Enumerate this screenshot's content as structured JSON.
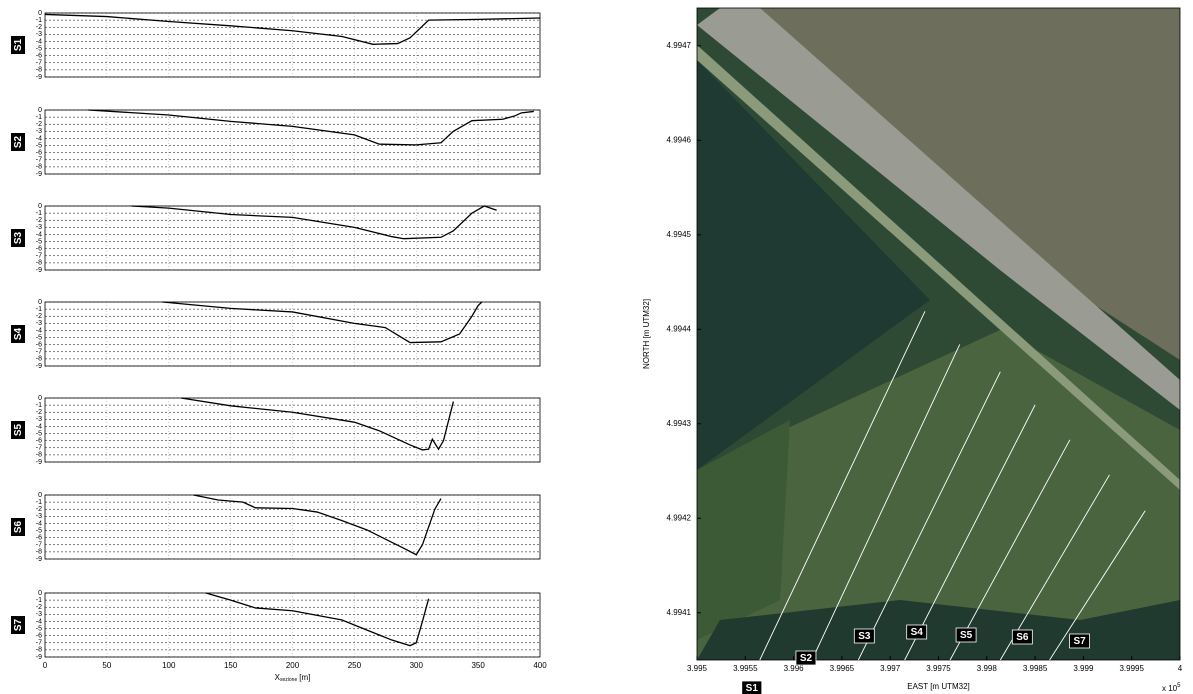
{
  "chart_data": [
    {
      "type": "line",
      "label": "S1",
      "xlim": [
        0,
        400
      ],
      "xticks": [
        0,
        50,
        100,
        150,
        200,
        250,
        300,
        350,
        400
      ],
      "ylim": [
        -9,
        0
      ],
      "yticks": [
        0,
        -1,
        -2,
        -3,
        -4,
        -5,
        -6,
        -7,
        -8,
        -9
      ],
      "x": [
        0,
        50,
        100,
        150,
        200,
        240,
        265,
        285,
        295,
        310,
        350,
        400
      ],
      "values": [
        -0.2,
        -0.5,
        -1.2,
        -1.8,
        -2.5,
        -3.3,
        -4.4,
        -4.3,
        -3.5,
        -1,
        -0.9,
        -0.7
      ],
      "color": "#000000"
    },
    {
      "type": "line",
      "label": "S2",
      "xlim": [
        0,
        400
      ],
      "xticks": [
        0,
        50,
        100,
        150,
        200,
        250,
        300,
        350,
        400
      ],
      "ylim": [
        -9,
        0
      ],
      "yticks": [
        0,
        -1,
        -2,
        -3,
        -4,
        -5,
        -6,
        -7,
        -8,
        -9
      ],
      "x": [
        35,
        100,
        150,
        200,
        250,
        270,
        300,
        320,
        330,
        345,
        370,
        380,
        385,
        395
      ],
      "values": [
        0,
        -0.7,
        -1.6,
        -2.3,
        -3.5,
        -4.8,
        -4.9,
        -4.6,
        -3,
        -1.5,
        -1.3,
        -0.8,
        -0.4,
        -0.2
      ],
      "color": "#000000"
    },
    {
      "type": "line",
      "label": "S3",
      "xlim": [
        0,
        400
      ],
      "xticks": [
        0,
        50,
        100,
        150,
        200,
        250,
        300,
        350,
        400
      ],
      "ylim": [
        -9,
        0
      ],
      "yticks": [
        0,
        -1,
        -2,
        -3,
        -4,
        -5,
        -6,
        -7,
        -8,
        -9
      ],
      "x": [
        70,
        100,
        150,
        200,
        250,
        280,
        290,
        320,
        330,
        345,
        355,
        365
      ],
      "values": [
        0,
        -0.3,
        -1.2,
        -1.6,
        -3,
        -4.3,
        -4.6,
        -4.4,
        -3.5,
        -1,
        0,
        -0.6
      ],
      "color": "#000000"
    },
    {
      "type": "line",
      "label": "S4",
      "xlim": [
        0,
        400
      ],
      "xticks": [
        0,
        50,
        100,
        150,
        200,
        250,
        300,
        350,
        400
      ],
      "ylim": [
        -9,
        0
      ],
      "yticks": [
        0,
        -1,
        -2,
        -3,
        -4,
        -5,
        -6,
        -7,
        -8,
        -9
      ],
      "x": [
        95,
        150,
        200,
        250,
        275,
        295,
        320,
        335,
        345,
        350,
        353
      ],
      "values": [
        0,
        -0.9,
        -1.4,
        -3,
        -3.6,
        -5.7,
        -5.6,
        -4.5,
        -2,
        -0.5,
        0
      ],
      "color": "#000000"
    },
    {
      "type": "line",
      "label": "S5",
      "xlim": [
        0,
        400
      ],
      "xticks": [
        0,
        50,
        100,
        150,
        200,
        250,
        300,
        350,
        400
      ],
      "ylim": [
        -9,
        0
      ],
      "yticks": [
        0,
        -1,
        -2,
        -3,
        -4,
        -5,
        -6,
        -7,
        -8,
        -9
      ],
      "x": [
        110,
        150,
        200,
        250,
        270,
        295,
        305,
        310,
        313,
        318,
        322,
        330
      ],
      "values": [
        0,
        -1.1,
        -2,
        -3.4,
        -4.6,
        -6.6,
        -7.3,
        -7.2,
        -5.8,
        -7.2,
        -6,
        -0.5
      ],
      "color": "#000000"
    },
    {
      "type": "line",
      "label": "S6",
      "xlim": [
        0,
        400
      ],
      "xticks": [
        0,
        50,
        100,
        150,
        200,
        250,
        300,
        350,
        400
      ],
      "ylim": [
        -9,
        0
      ],
      "yticks": [
        0,
        -1,
        -2,
        -3,
        -4,
        -5,
        -6,
        -7,
        -8,
        -9
      ],
      "x": [
        120,
        140,
        160,
        170,
        200,
        220,
        240,
        260,
        290,
        300,
        305,
        315,
        320
      ],
      "values": [
        0,
        -0.7,
        -1,
        -1.8,
        -1.9,
        -2.4,
        -3.6,
        -4.9,
        -7.5,
        -8.4,
        -7,
        -2,
        -0.5
      ],
      "color": "#000000"
    },
    {
      "type": "line",
      "label": "S7",
      "xlim": [
        0,
        400
      ],
      "xticks": [
        0,
        50,
        100,
        150,
        200,
        250,
        300,
        350,
        400
      ],
      "ylim": [
        -9,
        0
      ],
      "yticks": [
        0,
        -1,
        -2,
        -3,
        -4,
        -5,
        -6,
        -7,
        -8,
        -9
      ],
      "x": [
        130,
        150,
        170,
        200,
        240,
        260,
        280,
        295,
        300,
        305,
        310
      ],
      "values": [
        0,
        -1,
        -2.1,
        -2.5,
        -3.8,
        -5.2,
        -6.6,
        -7.4,
        -7,
        -4,
        -0.8
      ],
      "color": "#000000",
      "x_label": "X",
      "x_label_sub": "sezione",
      "x_label_unit": "[m]"
    },
    {
      "type": "map",
      "x_label": "EAST [m UTM32]",
      "y_label": "NORTH [m UTM32]",
      "x_multiplier": "x 10",
      "x_multiplier_exp": "5",
      "xlim": [
        3.995,
        4.0
      ],
      "xticks": [
        3.995,
        3.9955,
        3.996,
        3.9965,
        3.997,
        3.9975,
        3.998,
        3.9985,
        3.999,
        3.9995,
        4
      ],
      "ylim": [
        4.99405,
        4.99474
      ],
      "yticks": [
        4.9941,
        4.9942,
        4.9943,
        4.9944,
        4.9945,
        4.9946,
        4.9947
      ],
      "sections": [
        {
          "label": "S1",
          "x": [
            3.99565,
            3.99736
          ],
          "y": [
            4.99405,
            4.994419
          ]
        },
        {
          "label": "S2",
          "x": [
            3.99619,
            3.99772
          ],
          "y": [
            4.99405,
            4.994384
          ]
        },
        {
          "label": "S3",
          "x": [
            3.99667,
            3.99814
          ],
          "y": [
            4.99405,
            4.994355
          ]
        },
        {
          "label": "S4",
          "x": [
            3.99715,
            3.9985
          ],
          "y": [
            4.99405,
            4.99432
          ]
        },
        {
          "label": "S5",
          "x": [
            3.99762,
            3.99886
          ],
          "y": [
            4.99405,
            4.994283
          ]
        },
        {
          "label": "S6",
          "x": [
            3.99814,
            3.99927
          ],
          "y": [
            4.99405,
            4.994246
          ]
        },
        {
          "label": "S7",
          "x": [
            3.99865,
            3.99964
          ],
          "y": [
            4.99405,
            4.994208
          ]
        }
      ],
      "line_color": "#ffffff"
    }
  ]
}
